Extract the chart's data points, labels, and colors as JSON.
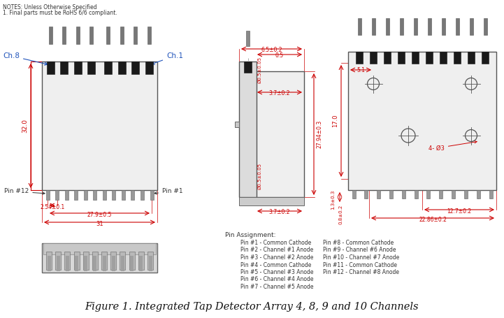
{
  "title": "Figure 1. Integrated Tap Detector Array 4, 8, 9 and 10 Channels",
  "notes_line1": "NOTES: Unless Otherwise Specified",
  "notes_line2": "1. Final parts must be RoHS 6/6 compliant.",
  "bg_color": "#ffffff",
  "dim_color": "#cc0000",
  "body_fill": "#efefef",
  "body_edge": "#555555",
  "pin_fill": "#1a1a1a",
  "pin_stem_fill": "#888888",
  "gray": "#888888",
  "pin_assignment_header": "Pin Assignment:",
  "pin_assignments_left": [
    "Pin #1 - Common Cathode",
    "Pin #2 - Channel #1 Anode",
    "Pin #3 - Channel #2 Anode",
    "Pin #4 - Common Cathode",
    "Pin #5 - Channel #3 Anode",
    "Pin #6 - Channel #4 Anode",
    "Pin #7 - Channel #5 Anode"
  ],
  "pin_assignments_right": [
    "Pin #8 - Common Cathode",
    "Pin #9 - Channel #6 Anode",
    "Pin #10 - Channel #7 Anode",
    "Pin #11 - Common Cathode",
    "Pin #12 - Channel #8 Anode"
  ]
}
